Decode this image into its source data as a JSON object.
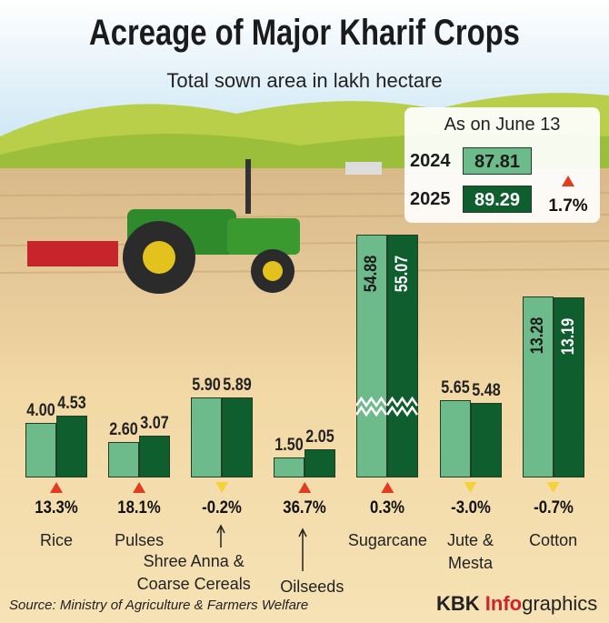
{
  "chart_data": {
    "type": "bar",
    "title": "Acreage of Major Kharif Crops",
    "subtitle": "Total sown area in lakh hectare",
    "categories": [
      "Rice",
      "Pulses",
      "Shree Anna & Coarse Cereals",
      "Oilseeds",
      "Sugarcane",
      "Jute & Mesta",
      "Cotton"
    ],
    "series": [
      {
        "name": "2024",
        "color": "#6dbb8a",
        "values": [
          4.0,
          2.6,
          5.9,
          1.5,
          54.88,
          5.65,
          13.28
        ],
        "value_labels": [
          "4.00",
          "2.60",
          "5.90",
          "1.50",
          "54.88",
          "5.65",
          "13.28"
        ],
        "total": 87.81
      },
      {
        "name": "2025",
        "color": "#0f5e2e",
        "values": [
          4.53,
          3.07,
          5.89,
          2.05,
          55.07,
          5.48,
          13.19
        ],
        "value_labels": [
          "4.53",
          "3.07",
          "5.89",
          "2.05",
          "55.07",
          "5.48",
          "13.19"
        ],
        "total": 89.29
      }
    ],
    "changes": [
      13.3,
      18.1,
      -0.2,
      36.7,
      0.3,
      -3.0,
      -0.7
    ],
    "change_labels": [
      "13.3%",
      "18.1%",
      "-0.2%",
      "36.7%",
      "0.3%",
      "-3.0%",
      "-0.7%"
    ],
    "legend_title": "As on June 13",
    "total_change": 1.7,
    "total_change_label": "1.7%",
    "source": "Source: Ministry of Agriculture & Farmers Welfare",
    "brand": [
      "KBK ",
      "Info",
      "graphics"
    ]
  }
}
